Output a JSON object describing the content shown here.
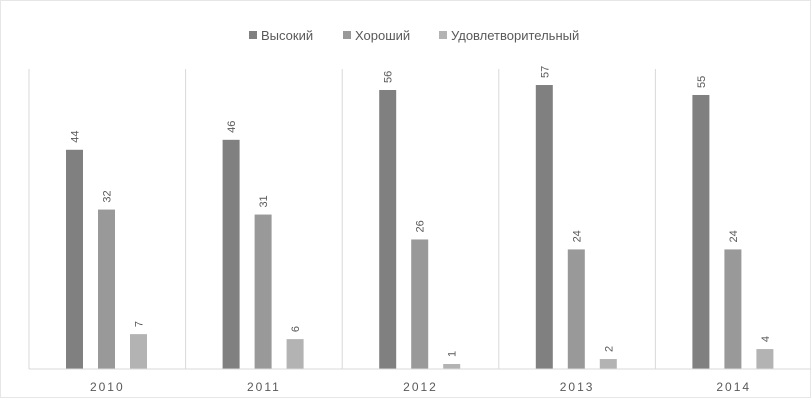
{
  "chart_data": {
    "type": "bar",
    "title": "",
    "xlabel": "",
    "ylabel": "",
    "categories": [
      "2010",
      "2011",
      "2012",
      "2013",
      "2014"
    ],
    "series": [
      {
        "name": "Высокий",
        "values": [
          44,
          46,
          56,
          57,
          55
        ],
        "color": "#808080"
      },
      {
        "name": "Хороший",
        "values": [
          32,
          31,
          26,
          24,
          24
        ],
        "color": "#999999"
      },
      {
        "name": "Удовлетворительный",
        "values": [
          7,
          6,
          1,
          2,
          4
        ],
        "color": "#b3b3b3"
      }
    ],
    "ylim": [
      0,
      60
    ],
    "grid": "vertical category separators",
    "legend": "top-center",
    "data_labels": true,
    "data_label_orientation": "vertical"
  }
}
